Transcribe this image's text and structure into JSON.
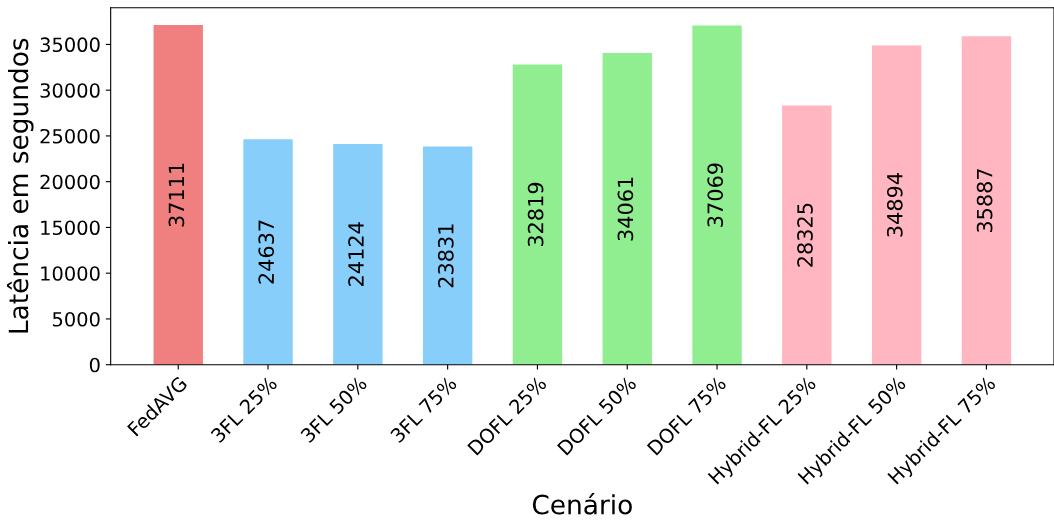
{
  "chart_data": {
    "type": "bar",
    "xlabel": "Cenário",
    "ylabel": "Latência em segundos",
    "categories": [
      "FedAVG",
      "3FL 25%",
      "3FL 50%",
      "3FL 75%",
      "DOFL 25%",
      "DOFL 50%",
      "DOFL 75%",
      "Hybrid-FL 25%",
      "Hybrid-FL 50%",
      "Hybrid-FL 75%"
    ],
    "values": [
      37111,
      24637,
      24124,
      23831,
      32819,
      34061,
      37069,
      28325,
      34894,
      35887
    ],
    "colors": [
      "#f08080",
      "#87cefa",
      "#87cefa",
      "#87cefa",
      "#90ee90",
      "#90ee90",
      "#90ee90",
      "#ffb6c1",
      "#ffb6c1",
      "#ffb6c1"
    ],
    "ylim": [
      0,
      39000
    ],
    "yticks": [
      0,
      5000,
      10000,
      15000,
      20000,
      25000,
      30000,
      35000
    ],
    "data_labels": true,
    "grid": false
  }
}
